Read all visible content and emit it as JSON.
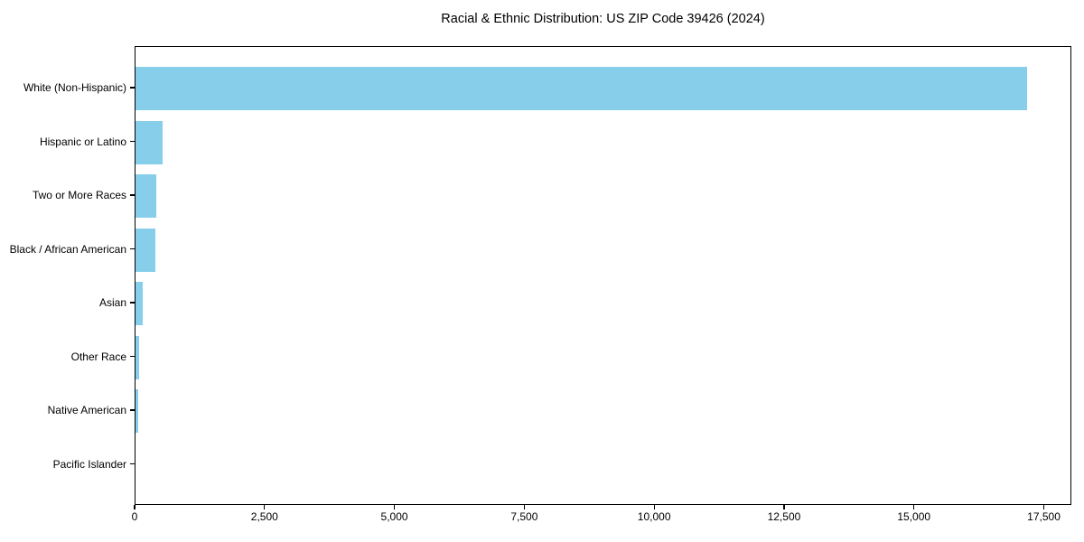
{
  "chart_data": {
    "type": "bar",
    "orientation": "horizontal",
    "title": "Racial & Ethnic Distribution: US ZIP Code 39426 (2024)",
    "categories": [
      "White (Non-Hispanic)",
      "Hispanic or Latino",
      "Two or More Races",
      "Black / African American",
      "Asian",
      "Other Race",
      "Native American",
      "Pacific Islander"
    ],
    "values": [
      17160,
      520,
      400,
      385,
      145,
      60,
      55,
      0
    ],
    "xlabel": "",
    "ylabel": "",
    "xlim": [
      0,
      18030
    ],
    "xticks": [
      0,
      2500,
      5000,
      7500,
      10000,
      12500,
      15000,
      17500
    ],
    "xtick_labels": [
      "0",
      "2,500",
      "5,000",
      "7,500",
      "10,000",
      "12,500",
      "15,000",
      "17,500"
    ],
    "bar_color": "#87CEEB",
    "frame_color": "#000000",
    "text_color": "#000000",
    "grid": false,
    "legend": null
  }
}
